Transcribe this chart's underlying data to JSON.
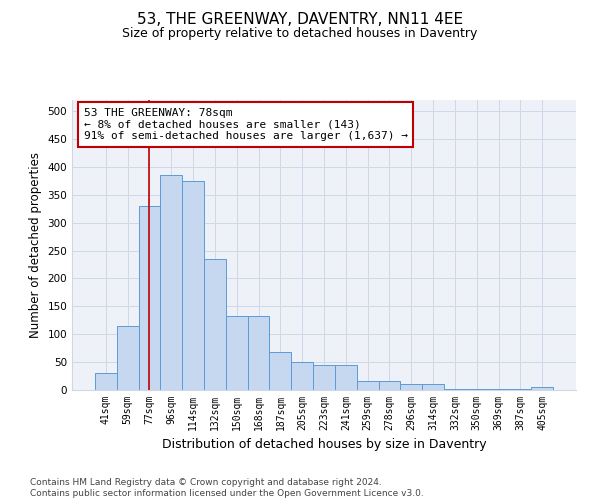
{
  "title1": "53, THE GREENWAY, DAVENTRY, NN11 4EE",
  "title2": "Size of property relative to detached houses in Daventry",
  "xlabel": "Distribution of detached houses by size in Daventry",
  "ylabel": "Number of detached properties",
  "categories": [
    "41sqm",
    "59sqm",
    "77sqm",
    "96sqm",
    "114sqm",
    "132sqm",
    "150sqm",
    "168sqm",
    "187sqm",
    "205sqm",
    "223sqm",
    "241sqm",
    "259sqm",
    "278sqm",
    "296sqm",
    "314sqm",
    "332sqm",
    "350sqm",
    "369sqm",
    "387sqm",
    "405sqm"
  ],
  "values": [
    30,
    115,
    330,
    385,
    375,
    235,
    133,
    133,
    68,
    50,
    45,
    45,
    17,
    17,
    11,
    11,
    2,
    2,
    2,
    2,
    6
  ],
  "bar_color": "#c5d8f0",
  "bar_edge_color": "#5b9bd5",
  "vline_x": 2,
  "vline_color": "#c00000",
  "annotation_text": "53 THE GREENWAY: 78sqm\n← 8% of detached houses are smaller (143)\n91% of semi-detached houses are larger (1,637) →",
  "annotation_box_color": "white",
  "annotation_box_edge_color": "#c00000",
  "ylim": [
    0,
    520
  ],
  "yticks": [
    0,
    50,
    100,
    150,
    200,
    250,
    300,
    350,
    400,
    450,
    500
  ],
  "grid_color": "#d0d8e8",
  "background_color": "#eef2f8",
  "footer_text": "Contains HM Land Registry data © Crown copyright and database right 2024.\nContains public sector information licensed under the Open Government Licence v3.0."
}
